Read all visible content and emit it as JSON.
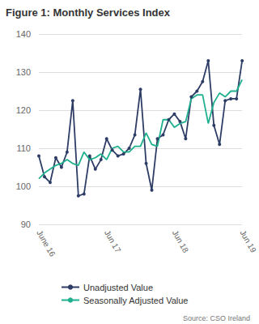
{
  "chart_data": {
    "type": "line",
    "title": "Figure 1: Monthly Services Index",
    "source": "Source: CSO Ireland",
    "categories": [
      "June 16",
      null,
      null,
      null,
      null,
      null,
      null,
      null,
      null,
      null,
      null,
      null,
      "Jun 17",
      null,
      null,
      null,
      null,
      null,
      null,
      null,
      null,
      null,
      null,
      null,
      "Jun 18",
      null,
      null,
      null,
      null,
      null,
      null,
      null,
      null,
      null,
      null,
      null,
      "Jun 19"
    ],
    "series": [
      {
        "name": "Unadjusted Value",
        "color": "#2e3d66",
        "marker": "circle",
        "values": [
          108,
          102.5,
          101,
          107.5,
          105,
          109,
          122.5,
          97.5,
          98,
          108,
          104.5,
          107,
          112.5,
          109.5,
          108,
          108.5,
          110,
          113.5,
          125.5,
          106,
          99,
          112.5,
          113.5,
          117.5,
          119,
          117,
          112.5,
          123.5,
          125,
          127.5,
          133,
          116,
          111,
          122.5,
          123,
          123,
          133
        ]
      },
      {
        "name": "Seasonally Adjusted Value",
        "color": "#1fb08e",
        "marker": "none",
        "values": [
          102,
          103.5,
          104.5,
          105.5,
          106,
          107,
          106,
          105.5,
          109,
          107,
          107.5,
          108.5,
          107,
          110,
          110.5,
          109,
          109,
          110.5,
          110.5,
          114,
          111,
          110.5,
          117.5,
          117.5,
          115.5,
          116.5,
          117,
          123,
          124,
          124,
          116.5,
          122,
          124.5,
          123.5,
          125,
          125,
          128
        ]
      }
    ],
    "ylim": [
      90,
      140
    ],
    "yticks": [
      90,
      100,
      110,
      120,
      130,
      140
    ],
    "grid": true,
    "legend": "bottom"
  }
}
